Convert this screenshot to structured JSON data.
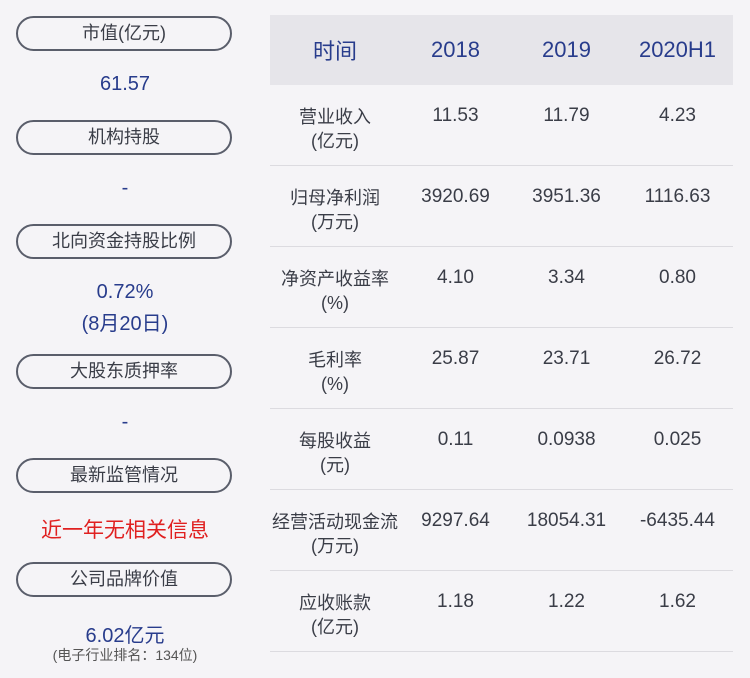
{
  "left": {
    "items": [
      {
        "label": "市值(亿元)",
        "value": "61.57"
      },
      {
        "label": "机构持股",
        "value": "-"
      },
      {
        "label": "北向资金持股比例",
        "value": "0.72%",
        "value2": "(8月20日)"
      },
      {
        "label": "大股东质押率",
        "value": "-"
      },
      {
        "label": "最新监管情况",
        "value": "近一年无相关信息"
      },
      {
        "label": "公司品牌价值",
        "value": "6.02亿元",
        "note": "(电子行业排名：134位)"
      }
    ]
  },
  "table": {
    "headers": [
      "时间",
      "2018",
      "2019",
      "2020H1"
    ],
    "rows": [
      {
        "name": "营业收入",
        "unit": "(亿元)",
        "values": [
          "11.53",
          "11.79",
          "4.23"
        ]
      },
      {
        "name": "归母净利润",
        "unit": "(万元)",
        "values": [
          "3920.69",
          "3951.36",
          "1116.63"
        ]
      },
      {
        "name": "净资产收益率",
        "unit": "(%)",
        "values": [
          "4.10",
          "3.34",
          "0.80"
        ]
      },
      {
        "name": "毛利率",
        "unit": "(%)",
        "values": [
          "25.87",
          "23.71",
          "26.72"
        ]
      },
      {
        "name": "每股收益",
        "unit": "(元)",
        "values": [
          "0.11",
          "0.0938",
          "0.025"
        ]
      },
      {
        "name": "经营活动现金流",
        "unit": "(万元)",
        "values": [
          "9297.64",
          "18054.31",
          "-6435.44"
        ]
      },
      {
        "name": "应收账款",
        "unit": "(亿元)",
        "values": [
          "1.18",
          "1.22",
          "1.62"
        ]
      }
    ]
  }
}
